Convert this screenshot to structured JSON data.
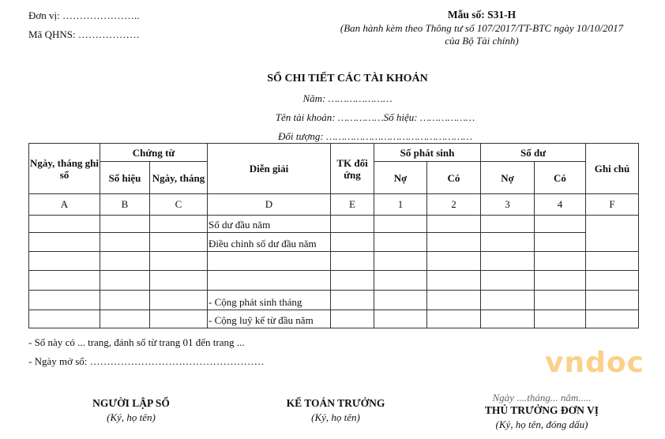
{
  "header_left": {
    "unit": "Đơn vị: …………………..",
    "qhns": "Mã QHNS: ………………"
  },
  "header_right": {
    "form_no": "Mẫu số: S31-H",
    "issued_line1": "(Ban hành kèm theo Thông tư số 107/2017/TT-BTC ngày 10/10/2017",
    "issued_line2": "của Bộ Tài chính)"
  },
  "title": "SỔ CHI TIẾT CÁC TÀI KHOẢN",
  "year": "Năm: …………………",
  "account": "Tên tài khoản: ……………Số hiệu: ………………",
  "subject": "Đối tượng: …………………………………………",
  "table": {
    "headers": {
      "date": "Ngày, tháng ghi sổ",
      "voucher": "Chứng từ",
      "voucher_no": "Số hiệu",
      "voucher_date": "Ngày, tháng",
      "desc": "Diễn giải",
      "contra": "TK đối ứng",
      "arising": "Số phát sinh",
      "balance": "Số dư",
      "debit": "Nợ",
      "credit": "Có",
      "note": "Ghi chú"
    },
    "codes": [
      "A",
      "B",
      "C",
      "D",
      "E",
      "1",
      "2",
      "3",
      "4",
      "F"
    ],
    "rows": [
      "Số dư đầu năm",
      "Điều chỉnh số dư đầu năm",
      "",
      "",
      "- Cộng phát sinh tháng",
      "- Cộng luỹ kế từ đầu năm"
    ]
  },
  "notes": {
    "pages": "- Sổ này có ... trang, đánh số từ trang 01 đến trang ...",
    "open_date": "- Ngày mở sổ: ……………………………………………"
  },
  "signatures": {
    "date_line": "Ngày ....tháng... năm.....",
    "preparer": "NGƯỜI LẬP SỔ",
    "preparer_sub": "(Ký, họ tên)",
    "accountant": "KẾ TOÁN TRƯỞNG",
    "accountant_sub": "(Ký, họ tên)",
    "head": "THỦ TRƯỞNG ĐƠN VỊ",
    "head_sub": "(Ký, họ tên, đóng dấu)"
  },
  "watermark": "vndoc"
}
